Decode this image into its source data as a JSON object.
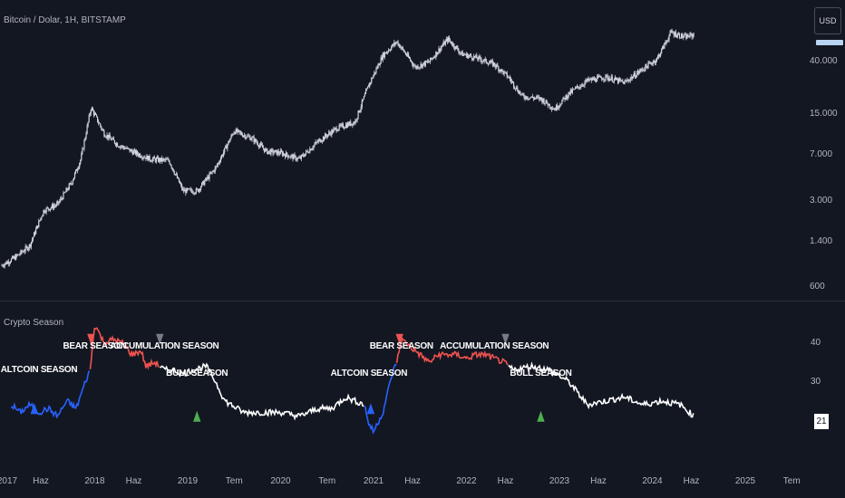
{
  "main_title": "Bitcoin / Dolar, 1H, BITSTAMP",
  "indicator_title": "Crypto Season",
  "currency_button": "USD",
  "current_value": "21",
  "colors": {
    "background": "#131722",
    "candle": "#d1d4dc",
    "bull": "#ffffff",
    "bear": "#f05350",
    "altcoin": "#2962ff",
    "up_arrow": "#4caf50",
    "down_arrow_bear": "#f05350",
    "down_arrow_accum": "#787b86"
  },
  "chart_data": [
    {
      "type": "candlestick",
      "title": "Bitcoin / Dolar, 1H, BITSTAMP",
      "scale": "log",
      "y_ticks": [
        "40.000",
        "15.000",
        "7.000",
        "3.000",
        "1.400",
        "600"
      ],
      "y_tick_values": [
        40000,
        15000,
        7000,
        3000,
        1400,
        600
      ],
      "x": [
        2017.0,
        2017.15,
        2017.3,
        2017.45,
        2017.6,
        2017.75,
        2017.85,
        2017.96,
        2018.1,
        2018.25,
        2018.4,
        2018.6,
        2018.8,
        2018.95,
        2019.1,
        2019.3,
        2019.5,
        2019.7,
        2019.85,
        2020.0,
        2020.2,
        2020.4,
        2020.6,
        2020.8,
        2020.95,
        2021.1,
        2021.25,
        2021.45,
        2021.6,
        2021.8,
        2021.95,
        2022.1,
        2022.3,
        2022.45,
        2022.6,
        2022.8,
        2022.95,
        2023.1,
        2023.3,
        2023.5,
        2023.7,
        2023.9,
        2024.05,
        2024.2,
        2024.35,
        2024.45
      ],
      "close": [
        900,
        1050,
        1300,
        2500,
        2800,
        4200,
        6500,
        17000,
        10500,
        8500,
        7500,
        6500,
        6300,
        3600,
        3600,
        5500,
        11000,
        9500,
        7500,
        7300,
        6500,
        9000,
        11500,
        13000,
        26000,
        45000,
        58000,
        36000,
        40000,
        61000,
        46000,
        43000,
        38000,
        30000,
        21000,
        20000,
        16500,
        22000,
        28000,
        30000,
        27000,
        35000,
        42000,
        69000,
        63000,
        66000
      ]
    },
    {
      "type": "line",
      "title": "Crypto Season",
      "y_ticks": [
        "40",
        "30",
        "21"
      ],
      "ylim": [
        16,
        48
      ],
      "x": [
        2017.1,
        2017.2,
        2017.3,
        2017.4,
        2017.5,
        2017.6,
        2017.7,
        2017.8,
        2017.9,
        2017.95,
        2018.0,
        2018.1,
        2018.2,
        2018.3,
        2018.4,
        2018.5,
        2018.55,
        2018.65,
        2018.75,
        2018.85,
        2018.95,
        2019.05,
        2019.2,
        2019.3,
        2019.4,
        2019.6,
        2019.8,
        2020.0,
        2020.2,
        2020.4,
        2020.55,
        2020.7,
        2020.8,
        2020.9,
        2020.95,
        2021.0,
        2021.1,
        2021.2,
        2021.25,
        2021.3,
        2021.4,
        2021.5,
        2021.6,
        2021.7,
        2021.8,
        2021.9,
        2022.0,
        2022.1,
        2022.2,
        2022.3,
        2022.4,
        2022.45,
        2022.5,
        2022.7,
        2022.9,
        2023.1,
        2023.3,
        2023.5,
        2023.7,
        2023.9,
        2024.1,
        2024.3,
        2024.45
      ],
      "values": [
        24,
        22,
        24,
        22,
        23,
        21,
        25,
        23,
        30,
        33,
        45,
        40,
        41,
        40,
        37,
        38,
        34,
        35,
        33,
        33,
        32,
        33,
        34,
        30,
        25,
        22,
        22,
        22,
        21,
        23,
        23,
        26,
        25,
        24,
        19,
        17,
        22,
        32,
        35,
        41,
        39,
        37,
        35,
        37,
        37,
        37,
        36,
        37,
        37,
        36,
        35,
        34,
        33,
        34,
        33,
        30,
        24,
        25,
        26,
        24,
        25,
        24,
        21
      ],
      "segments": [
        {
          "name": "ALTCOIN SEASON",
          "x_start": 2017.1,
          "x_end": 2017.95,
          "color": "#2962ff"
        },
        {
          "name": "BEAR SEASON",
          "x_start": 2017.95,
          "x_end": 2018.7,
          "color": "#f05350"
        },
        {
          "name": "BULL SEASON",
          "x_start": 2018.7,
          "x_end": 2020.9,
          "color": "#ffffff"
        },
        {
          "name": "ALTCOIN SEASON",
          "x_start": 2020.9,
          "x_end": 2021.25,
          "color": "#2962ff"
        },
        {
          "name": "BEAR SEASON",
          "x_start": 2021.25,
          "x_end": 2022.45,
          "color": "#f05350"
        },
        {
          "name": "BULL SEASON",
          "x_start": 2022.45,
          "x_end": 2024.45,
          "color": "#ffffff"
        }
      ],
      "annotations": [
        {
          "text": "ALTCOIN SEASON",
          "x": 2017.4,
          "y": 33
        },
        {
          "text": "BEAR SEASON",
          "x": 2018.0,
          "y": 39
        },
        {
          "text": "ACCUMULATION SEASON",
          "x": 2018.75,
          "y": 39
        },
        {
          "text": "BULL SEASON",
          "x": 2019.1,
          "y": 32
        },
        {
          "text": "ALTCOIN SEASON",
          "x": 2020.95,
          "y": 32
        },
        {
          "text": "BEAR SEASON",
          "x": 2021.3,
          "y": 39
        },
        {
          "text": "ACCUMULATION SEASON",
          "x": 2022.3,
          "y": 39
        },
        {
          "text": "BULL SEASON",
          "x": 2022.8,
          "y": 32
        }
      ],
      "markers": [
        {
          "shape": "triangle-up",
          "x": 2017.35,
          "y": 23,
          "color": "#2962ff"
        },
        {
          "shape": "triangle-down",
          "x": 2017.96,
          "y": 41,
          "color": "#f05350"
        },
        {
          "shape": "triangle-down",
          "x": 2018.7,
          "y": 41,
          "color": "#787b86"
        },
        {
          "shape": "triangle-up",
          "x": 2019.1,
          "y": 21,
          "color": "#4caf50"
        },
        {
          "shape": "triangle-up",
          "x": 2020.97,
          "y": 23,
          "color": "#2962ff"
        },
        {
          "shape": "triangle-down",
          "x": 2021.28,
          "y": 41,
          "color": "#f05350"
        },
        {
          "shape": "triangle-down",
          "x": 2022.42,
          "y": 41,
          "color": "#787b86"
        },
        {
          "shape": "triangle-up",
          "x": 2022.8,
          "y": 21,
          "color": "#4caf50"
        }
      ]
    }
  ],
  "time_axis": {
    "ticks": [
      {
        "label": "2017",
        "x": 2017.0
      },
      {
        "label": "Haz",
        "x": 2017.42
      },
      {
        "label": "2018",
        "x": 2018.0
      },
      {
        "label": "Haz",
        "x": 2018.42
      },
      {
        "label": "2019",
        "x": 2019.0
      },
      {
        "label": "Tem",
        "x": 2019.5
      },
      {
        "label": "2020",
        "x": 2020.0
      },
      {
        "label": "Tem",
        "x": 2020.5
      },
      {
        "label": "2021",
        "x": 2021.0
      },
      {
        "label": "Haz",
        "x": 2021.42
      },
      {
        "label": "2022",
        "x": 2022.0
      },
      {
        "label": "Haz",
        "x": 2022.42
      },
      {
        "label": "2023",
        "x": 2023.0
      },
      {
        "label": "Haz",
        "x": 2023.42
      },
      {
        "label": "2024",
        "x": 2024.0
      },
      {
        "label": "Haz",
        "x": 2024.42
      },
      {
        "label": "2025",
        "x": 2025.0
      },
      {
        "label": "Tem",
        "x": 2025.5
      }
    ]
  }
}
